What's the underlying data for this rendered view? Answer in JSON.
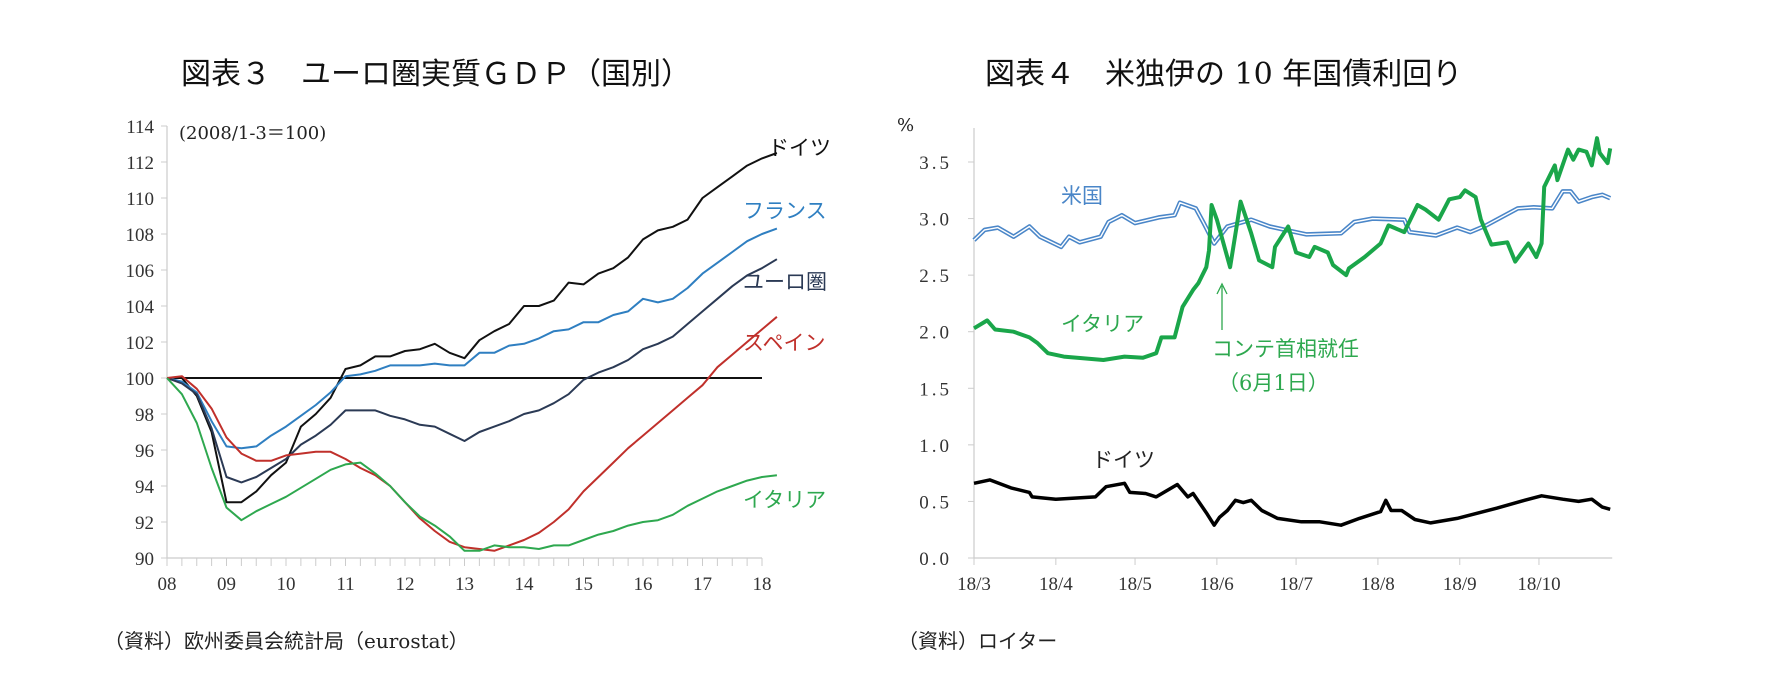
{
  "chart_data": [
    {
      "type": "line",
      "title": "図表３　ユーロ圏実質ＧＤＰ（国別）",
      "note": "(2008/1-3＝100)",
      "source": "（資料）欧州委員会統計局（eurostat）",
      "frequency": "quarterly",
      "x_start": "2008Q1",
      "x_tick_labels": [
        "08",
        "09",
        "10",
        "11",
        "12",
        "13",
        "14",
        "15",
        "16",
        "17",
        "18"
      ],
      "ylim": [
        90,
        114
      ],
      "y_tick_labels": [
        "90",
        "92",
        "94",
        "96",
        "98",
        "100",
        "102",
        "104",
        "106",
        "108",
        "110",
        "112",
        "114"
      ],
      "reference_line": 100,
      "grid": false,
      "series": [
        {
          "name": "ドイツ",
          "color": "#111111",
          "values": [
            100,
            100,
            99,
            97,
            93.1,
            93.1,
            93.7,
            94.6,
            95.3,
            97.3,
            98,
            98.9,
            100.5,
            100.7,
            101.2,
            101.2,
            101.5,
            101.6,
            101.9,
            101.4,
            101.1,
            102.1,
            102.6,
            103,
            104,
            104,
            104.3,
            105.3,
            105.2,
            105.8,
            106.1,
            106.7,
            107.7,
            108.2,
            108.4,
            108.8,
            110,
            110.6,
            111.2,
            111.8,
            112.2,
            112.5
          ]
        },
        {
          "name": "フランス",
          "color": "#2f7fc1",
          "values": [
            100,
            99.8,
            99.2,
            97.6,
            96.2,
            96.1,
            96.2,
            96.8,
            97.3,
            97.9,
            98.5,
            99.2,
            100.1,
            100.2,
            100.4,
            100.7,
            100.7,
            100.7,
            100.8,
            100.7,
            100.7,
            101.4,
            101.4,
            101.8,
            101.9,
            102.2,
            102.6,
            102.7,
            103.1,
            103.1,
            103.5,
            103.7,
            104.4,
            104.2,
            104.4,
            105,
            105.8,
            106.4,
            107,
            107.6,
            108,
            108.3
          ]
        },
        {
          "name": "ユーロ圏",
          "color": "#2b3a55",
          "values": [
            100,
            99.7,
            99.1,
            97.2,
            94.5,
            94.2,
            94.5,
            95,
            95.5,
            96.3,
            96.8,
            97.4,
            98.2,
            98.2,
            98.2,
            97.9,
            97.7,
            97.4,
            97.3,
            96.9,
            96.5,
            97,
            97.3,
            97.6,
            98,
            98.2,
            98.6,
            99.1,
            99.9,
            100.3,
            100.6,
            101,
            101.6,
            101.9,
            102.3,
            103,
            103.7,
            104.4,
            105.1,
            105.7,
            106.1,
            106.6
          ]
        },
        {
          "name": "スペイン",
          "color": "#c0302b",
          "values": [
            100,
            100.1,
            99.4,
            98.3,
            96.7,
            95.8,
            95.4,
            95.4,
            95.7,
            95.8,
            95.9,
            95.9,
            95.5,
            95,
            94.6,
            94,
            93.1,
            92.2,
            91.5,
            90.9,
            90.6,
            90.5,
            90.4,
            90.7,
            91,
            91.4,
            92,
            92.7,
            93.7,
            94.5,
            95.3,
            96.1,
            96.8,
            97.5,
            98.2,
            98.9,
            99.6,
            100.6,
            101.3,
            102,
            102.7,
            103.4
          ]
        },
        {
          "name": "イタリア",
          "color": "#2ea84f",
          "values": [
            100,
            99.1,
            97.5,
            95,
            92.8,
            92.1,
            92.6,
            93,
            93.4,
            93.9,
            94.4,
            94.9,
            95.2,
            95.3,
            94.7,
            94,
            93.1,
            92.3,
            91.8,
            91.2,
            90.4,
            90.4,
            90.7,
            90.6,
            90.6,
            90.5,
            90.7,
            90.7,
            91,
            91.3,
            91.5,
            91.8,
            92,
            92.1,
            92.4,
            92.9,
            93.3,
            93.7,
            94,
            94.3,
            94.5,
            94.6
          ]
        }
      ]
    },
    {
      "type": "line",
      "title": "図表４　米独伊の 10 年国債利回り",
      "unit": "%",
      "source": "（資料）ロイター",
      "x_tick_labels": [
        "18/3",
        "18/4",
        "18/5",
        "18/6",
        "18/7",
        "18/8",
        "18/9",
        "18/10"
      ],
      "ylim": [
        0,
        3.5
      ],
      "y_tick_labels": [
        "0.0",
        "0.5",
        "1.0",
        "1.5",
        "2.0",
        "2.5",
        "3.0",
        "3.5"
      ],
      "grid": false,
      "annotation": {
        "text": "コンテ首相就任",
        "subtext": "（6月1日）",
        "date": "2018-06-01"
      },
      "series": [
        {
          "name": "米国",
          "color": "#4a86c8",
          "points": [
            [
              "2018-03-01",
              2.81
            ],
            [
              "2018-03-05",
              2.9
            ],
            [
              "2018-03-10",
              2.92
            ],
            [
              "2018-03-16",
              2.84
            ],
            [
              "2018-03-22",
              2.93
            ],
            [
              "2018-03-26",
              2.84
            ],
            [
              "2018-04-03",
              2.75
            ],
            [
              "2018-04-06",
              2.84
            ],
            [
              "2018-04-10",
              2.79
            ],
            [
              "2018-04-18",
              2.84
            ],
            [
              "2018-04-21",
              2.97
            ],
            [
              "2018-04-26",
              3.03
            ],
            [
              "2018-05-01",
              2.96
            ],
            [
              "2018-05-10",
              3.01
            ],
            [
              "2018-05-16",
              3.03
            ],
            [
              "2018-05-18",
              3.14
            ],
            [
              "2018-05-24",
              3.09
            ],
            [
              "2018-05-27",
              2.96
            ],
            [
              "2018-05-31",
              2.78
            ],
            [
              "2018-06-05",
              2.93
            ],
            [
              "2018-06-14",
              2.99
            ],
            [
              "2018-06-21",
              2.93
            ],
            [
              "2018-06-27",
              2.9
            ],
            [
              "2018-07-05",
              2.86
            ],
            [
              "2018-07-18",
              2.87
            ],
            [
              "2018-07-23",
              2.97
            ],
            [
              "2018-07-30",
              3.0
            ],
            [
              "2018-08-11",
              2.99
            ],
            [
              "2018-08-13",
              2.88
            ],
            [
              "2018-08-23",
              2.85
            ],
            [
              "2018-08-31",
              2.92
            ],
            [
              "2018-09-05",
              2.88
            ],
            [
              "2018-09-11",
              2.94
            ],
            [
              "2018-09-23",
              3.09
            ],
            [
              "2018-09-29",
              3.1
            ],
            [
              "2018-10-06",
              3.09
            ],
            [
              "2018-10-10",
              3.24
            ],
            [
              "2018-10-13",
              3.24
            ],
            [
              "2018-10-16",
              3.15
            ],
            [
              "2018-10-21",
              3.19
            ],
            [
              "2018-10-25",
              3.21
            ],
            [
              "2018-10-28",
              3.18
            ]
          ]
        },
        {
          "name": "イタリア",
          "color": "#1aa64a",
          "points": [
            [
              "2018-03-01",
              2.03
            ],
            [
              "2018-03-06",
              2.1
            ],
            [
              "2018-03-09",
              2.02
            ],
            [
              "2018-03-16",
              2.0
            ],
            [
              "2018-03-22",
              1.95
            ],
            [
              "2018-03-25",
              1.9
            ],
            [
              "2018-03-29",
              1.81
            ],
            [
              "2018-04-04",
              1.78
            ],
            [
              "2018-04-19",
              1.75
            ],
            [
              "2018-04-27",
              1.78
            ],
            [
              "2018-05-04",
              1.77
            ],
            [
              "2018-05-09",
              1.81
            ],
            [
              "2018-05-11",
              1.95
            ],
            [
              "2018-05-16",
              1.95
            ],
            [
              "2018-05-19",
              2.22
            ],
            [
              "2018-05-23",
              2.37
            ],
            [
              "2018-05-25",
              2.43
            ],
            [
              "2018-05-28",
              2.57
            ],
            [
              "2018-05-29",
              2.72
            ],
            [
              "2018-05-30",
              3.12
            ],
            [
              "2018-06-01",
              2.99
            ],
            [
              "2018-06-06",
              2.57
            ],
            [
              "2018-06-10",
              3.15
            ],
            [
              "2018-06-14",
              2.87
            ],
            [
              "2018-06-17",
              2.63
            ],
            [
              "2018-06-22",
              2.57
            ],
            [
              "2018-06-23",
              2.75
            ],
            [
              "2018-06-28",
              2.93
            ],
            [
              "2018-07-01",
              2.7
            ],
            [
              "2018-07-06",
              2.66
            ],
            [
              "2018-07-08",
              2.75
            ],
            [
              "2018-07-13",
              2.7
            ],
            [
              "2018-07-15",
              2.59
            ],
            [
              "2018-07-20",
              2.5
            ],
            [
              "2018-07-21",
              2.56
            ],
            [
              "2018-07-27",
              2.66
            ],
            [
              "2018-08-02",
              2.78
            ],
            [
              "2018-08-05",
              2.94
            ],
            [
              "2018-08-11",
              2.88
            ],
            [
              "2018-08-16",
              3.12
            ],
            [
              "2018-08-19",
              3.08
            ],
            [
              "2018-08-24",
              2.99
            ],
            [
              "2018-08-28",
              3.17
            ],
            [
              "2018-09-01",
              3.19
            ],
            [
              "2018-09-03",
              3.25
            ],
            [
              "2018-09-07",
              3.19
            ],
            [
              "2018-09-09",
              2.99
            ],
            [
              "2018-09-13",
              2.77
            ],
            [
              "2018-09-19",
              2.79
            ],
            [
              "2018-09-22",
              2.62
            ],
            [
              "2018-09-27",
              2.78
            ],
            [
              "2018-09-30",
              2.66
            ],
            [
              "2018-10-02",
              2.78
            ],
            [
              "2018-10-03",
              3.28
            ],
            [
              "2018-10-07",
              3.47
            ],
            [
              "2018-10-08",
              3.34
            ],
            [
              "2018-10-12",
              3.61
            ],
            [
              "2018-10-14",
              3.52
            ],
            [
              "2018-10-16",
              3.61
            ],
            [
              "2018-10-19",
              3.59
            ],
            [
              "2018-10-21",
              3.47
            ],
            [
              "2018-10-23",
              3.71
            ],
            [
              "2018-10-24",
              3.58
            ],
            [
              "2018-10-27",
              3.49
            ],
            [
              "2018-10-28",
              3.62
            ]
          ]
        },
        {
          "name": "ドイツ",
          "color": "#000000",
          "points": [
            [
              "2018-03-01",
              0.66
            ],
            [
              "2018-03-07",
              0.69
            ],
            [
              "2018-03-15",
              0.62
            ],
            [
              "2018-03-22",
              0.58
            ],
            [
              "2018-03-23",
              0.54
            ],
            [
              "2018-04-01",
              0.52
            ],
            [
              "2018-04-16",
              0.54
            ],
            [
              "2018-04-20",
              0.63
            ],
            [
              "2018-04-27",
              0.66
            ],
            [
              "2018-04-29",
              0.58
            ],
            [
              "2018-05-05",
              0.57
            ],
            [
              "2018-05-09",
              0.54
            ],
            [
              "2018-05-17",
              0.65
            ],
            [
              "2018-05-21",
              0.54
            ],
            [
              "2018-05-23",
              0.57
            ],
            [
              "2018-05-28",
              0.4
            ],
            [
              "2018-05-31",
              0.29
            ],
            [
              "2018-06-02",
              0.36
            ],
            [
              "2018-06-05",
              0.42
            ],
            [
              "2018-06-08",
              0.51
            ],
            [
              "2018-06-11",
              0.49
            ],
            [
              "2018-06-14",
              0.51
            ],
            [
              "2018-06-18",
              0.42
            ],
            [
              "2018-06-24",
              0.35
            ],
            [
              "2018-07-03",
              0.32
            ],
            [
              "2018-07-10",
              0.32
            ],
            [
              "2018-07-18",
              0.29
            ],
            [
              "2018-07-25",
              0.35
            ],
            [
              "2018-08-02",
              0.41
            ],
            [
              "2018-08-04",
              0.51
            ],
            [
              "2018-08-06",
              0.42
            ],
            [
              "2018-08-10",
              0.42
            ],
            [
              "2018-08-15",
              0.34
            ],
            [
              "2018-08-21",
              0.31
            ],
            [
              "2018-08-31",
              0.35
            ],
            [
              "2018-09-15",
              0.44
            ],
            [
              "2018-09-24",
              0.5
            ],
            [
              "2018-10-02",
              0.55
            ],
            [
              "2018-10-10",
              0.52
            ],
            [
              "2018-10-16",
              0.5
            ],
            [
              "2018-10-21",
              0.52
            ],
            [
              "2018-10-25",
              0.45
            ],
            [
              "2018-10-28",
              0.43
            ]
          ]
        }
      ]
    }
  ]
}
